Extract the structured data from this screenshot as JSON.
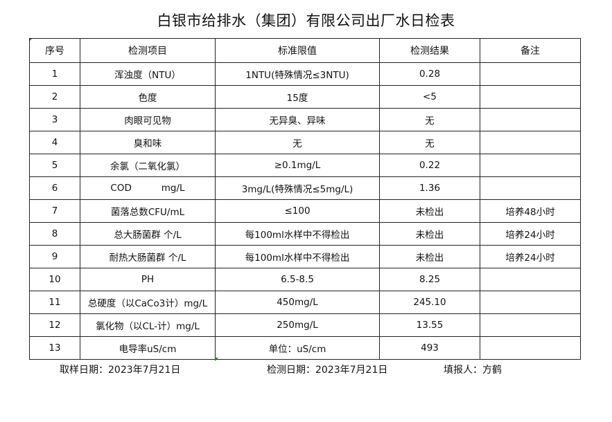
{
  "title": "白银市给排水（集团）有限公司出厂水日检表",
  "headers": [
    "序号",
    "检测项目",
    "标准限值",
    "检测结果",
    "备注"
  ],
  "rows": [
    [
      "1",
      "浑浊度（NTU）",
      "1NTU(特殊情况≤3NTU)",
      "0.28",
      ""
    ],
    [
      "2",
      "色度",
      "15度",
      "<5",
      ""
    ],
    [
      "3",
      "肉眼可见物",
      "无异臭、异味",
      "无",
      ""
    ],
    [
      "4",
      "臭和味",
      "无",
      "无",
      ""
    ],
    [
      "5",
      "余氯（二氧化氯）",
      "≥0.1mg/L",
      "0.22",
      ""
    ],
    [
      "6",
      "COD          mg/L",
      "3mg/L(特殊情况≤5mg/L)",
      "1.36",
      ""
    ],
    [
      "7",
      "菌落总数CFU/mL",
      "≤100",
      "未检出",
      "培养48小时"
    ],
    [
      "8",
      "总大肠菌群 个/L",
      "每100ml水样中不得检出",
      "未检出",
      "培养24小时"
    ],
    [
      "9",
      "耐热大肠菌群 个/L",
      "每100ml水样中不得检出",
      "未检出",
      "培养24小时"
    ],
    [
      "10",
      "PH",
      "6.5-8.5",
      "8.25",
      ""
    ],
    [
      "11",
      "总硬度（以CaCo3计）mg/L",
      "450mg/L",
      "245.10",
      ""
    ],
    [
      "12",
      "氯化物（以CL-计）mg/L",
      "250mg/L",
      "13.55",
      ""
    ],
    [
      "13",
      "电导率uS/cm",
      "单位：uS/cm",
      "493",
      ""
    ]
  ],
  "footer": {
    "sampling_date": "取样日期：2023年7月21日",
    "test_date": "检测日期：2023年7月21日",
    "filled_by": "填报人：方鹤"
  }
}
